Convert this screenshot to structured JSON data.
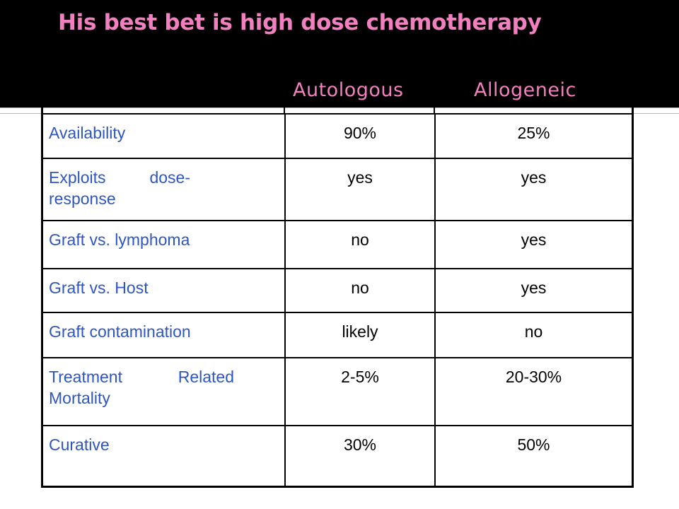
{
  "slide": {
    "title": "His best bet is high dose chemotherapy",
    "colors": {
      "header_background": "#000000",
      "title_text": "#f27fbf",
      "label_text": "#2e55c4",
      "value_text": "#000000"
    }
  },
  "table": {
    "columns": {
      "autologous": "Autologous",
      "allogeneic": "Allogeneic"
    },
    "rows": [
      {
        "label": "Availability",
        "autologous": "90%",
        "allogeneic": "25%"
      },
      {
        "label_line1": "Exploits dose-",
        "label_line2": "response",
        "autologous": "yes",
        "allogeneic": "yes"
      },
      {
        "label": "Graft vs. lymphoma",
        "autologous": "no",
        "allogeneic": "yes"
      },
      {
        "label": "Graft vs. Host",
        "autologous": "no",
        "allogeneic": "yes"
      },
      {
        "label": "Graft contamination",
        "autologous": "likely",
        "allogeneic": "no"
      },
      {
        "label_line1": "Treatment Related",
        "label_line2": "Mortality",
        "autologous": "2-5%",
        "allogeneic": "20-30%"
      },
      {
        "label": "Curative",
        "autologous": "30%",
        "allogeneic": "50%"
      }
    ]
  }
}
